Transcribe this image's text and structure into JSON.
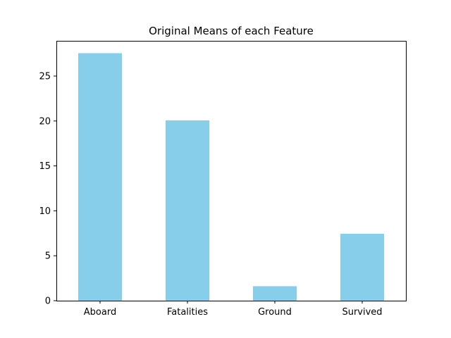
{
  "chart_data": {
    "type": "bar",
    "title": "Original Means of each Feature",
    "xlabel": "",
    "ylabel": "",
    "categories": [
      "Aboard",
      "Fatalities",
      "Ground",
      "Survived"
    ],
    "values": [
      27.55,
      20.07,
      1.61,
      7.45
    ],
    "ylim": [
      0,
      28.92
    ],
    "yticks": [
      0,
      5,
      10,
      15,
      20,
      25
    ],
    "ytick_labels": [
      "0",
      "5",
      "10",
      "15",
      "20",
      "25"
    ],
    "bar_color": "#87ceeb",
    "grid": false,
    "legend": "none"
  }
}
